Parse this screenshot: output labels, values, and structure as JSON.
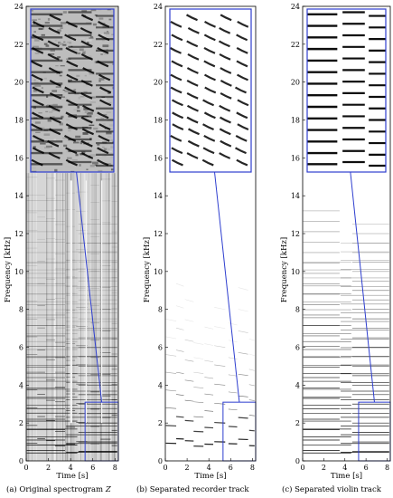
{
  "panels": [
    {
      "caption_prefix": "(a) Original spectrogram",
      "caption_var": "Z",
      "kind": "original",
      "xlabel": "Time [s]",
      "ylabel": "Frequency [kHz]",
      "xlim": [
        0,
        8.3
      ],
      "ylim": [
        0,
        24
      ],
      "x_ticks": [
        "0",
        "2",
        "4",
        "6",
        "8"
      ],
      "x_tick_values": [
        0,
        2,
        4,
        6,
        8
      ],
      "y_ticks": [
        "0",
        "2",
        "4",
        "6",
        "8",
        "10",
        "12",
        "14",
        "16",
        "18",
        "20",
        "22",
        "24"
      ],
      "y_tick_values": [
        0,
        2,
        4,
        6,
        8,
        10,
        12,
        14,
        16,
        18,
        20,
        22,
        24
      ],
      "zoom_region": {
        "t": [
          5.3,
          8.3
        ],
        "f": [
          0,
          3.1
        ]
      },
      "inset_ylim": [
        15.0,
        23.8
      ]
    },
    {
      "caption_prefix": "(b) Separated recorder track",
      "caption_var": "",
      "kind": "recorder",
      "xlabel": "Time [s]",
      "ylabel": "Frequency [kHz]",
      "xlim": [
        0,
        8.3
      ],
      "ylim": [
        0,
        24
      ],
      "x_ticks": [
        "0",
        "2",
        "4",
        "6",
        "8"
      ],
      "x_tick_values": [
        0,
        2,
        4,
        6,
        8
      ],
      "y_ticks": [
        "0",
        "2",
        "4",
        "6",
        "8",
        "10",
        "12",
        "14",
        "16",
        "18",
        "20",
        "22",
        "24"
      ],
      "y_tick_values": [
        0,
        2,
        4,
        6,
        8,
        10,
        12,
        14,
        16,
        18,
        20,
        22,
        24
      ],
      "zoom_region": {
        "t": [
          5.3,
          8.3
        ],
        "f": [
          0,
          3.1
        ]
      },
      "inset_ylim": [
        15.0,
        23.8
      ]
    },
    {
      "caption_prefix": "(c) Separated violin track",
      "caption_var": "",
      "kind": "violin",
      "xlabel": "Time [s]",
      "ylabel": "Frequency [kHz]",
      "xlim": [
        0,
        8.3
      ],
      "ylim": [
        0,
        24
      ],
      "x_ticks": [
        "0",
        "2",
        "4",
        "6",
        "8"
      ],
      "x_tick_values": [
        0,
        2,
        4,
        6,
        8
      ],
      "y_ticks": [
        "0",
        "2",
        "4",
        "6",
        "8",
        "10",
        "12",
        "14",
        "16",
        "18",
        "20",
        "22",
        "24"
      ],
      "y_tick_values": [
        0,
        2,
        4,
        6,
        8,
        10,
        12,
        14,
        16,
        18,
        20,
        22,
        24
      ],
      "zoom_region": {
        "t": [
          5.3,
          8.3
        ],
        "f": [
          0,
          3.1
        ]
      },
      "inset_ylim": [
        15.0,
        23.8
      ]
    }
  ],
  "chart_data": [
    {
      "type": "heatmap",
      "title": "",
      "xlabel": "Time [s]",
      "ylabel": "Frequency [kHz]",
      "xlim": [
        0,
        8.3
      ],
      "ylim": [
        0,
        24
      ],
      "notes_recorder": [
        {
          "t": [
            0.05,
            1.0
          ],
          "f": 0.72
        },
        {
          "t": [
            1.0,
            1.7
          ],
          "f": 0.9
        },
        {
          "t": [
            1.8,
            2.6
          ],
          "f": 0.82
        },
        {
          "t": [
            2.6,
            3.5
          ],
          "f": 0.6
        },
        {
          "t": [
            3.6,
            4.4
          ],
          "f": 0.68
        },
        {
          "t": [
            4.5,
            5.5
          ],
          "f": 0.78
        },
        {
          "t": [
            5.8,
            6.6
          ],
          "f": 0.7
        },
        {
          "t": [
            6.7,
            7.6
          ],
          "f": 0.88
        },
        {
          "t": [
            7.7,
            8.2
          ],
          "f": 0.62
        }
      ],
      "notes_violin": [
        {
          "t": [
            0.05,
            4.6
          ],
          "f": 0.42
        },
        {
          "t": [
            4.7,
            8.2
          ],
          "f": 0.5
        },
        {
          "t": [
            0.05,
            3.5
          ],
          "f": 0.55
        },
        {
          "t": [
            3.6,
            8.2
          ],
          "f": 0.46
        }
      ],
      "harmonics": 25
    },
    {
      "type": "heatmap",
      "title": "",
      "xlabel": "Time [s]",
      "ylabel": "Frequency [kHz]",
      "xlim": [
        0,
        8.3
      ],
      "ylim": [
        0,
        24
      ]
    },
    {
      "type": "heatmap",
      "title": "",
      "xlabel": "Time [s]",
      "ylabel": "Frequency [kHz]",
      "xlim": [
        0,
        8.3
      ],
      "ylim": [
        0,
        24
      ]
    }
  ],
  "colors": {
    "axis": "#000000",
    "zoom_box": "#2e3ecf",
    "grid_spec_bg": "#e4e4e4"
  }
}
